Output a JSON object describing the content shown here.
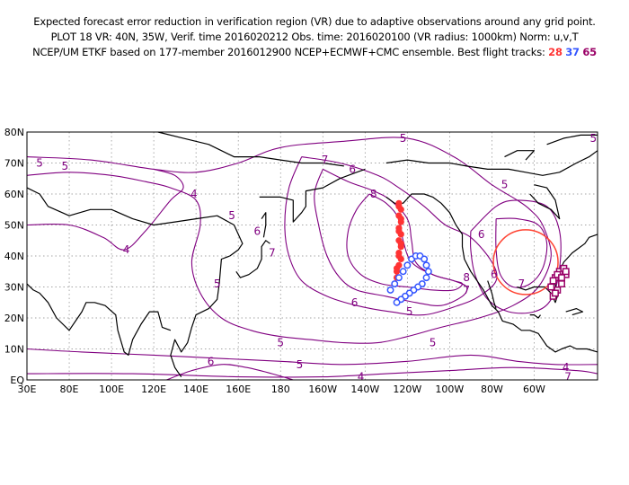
{
  "header": {
    "line1": "Expected forecast error reduction in verification region (VR) due to adaptive observations around any grid point.",
    "line2": "PLOT 18 VR: 40N, 35W, Verif. time 2016020212 Obs. time: 2016020100 (VR radius: 1000km) Norm: u,v,T",
    "line3": "NCEP/UM ETKF based on 177-member 2016012900 NCEP+ECMWF+CMC ensemble. Best flight tracks:",
    "tracks": [
      "28",
      "37",
      "65"
    ]
  },
  "colors": {
    "contour": "#800080",
    "track_28": "#ff3333",
    "track_37": "#3355ff",
    "track_65": "#990066",
    "vr_circle": "#ff4433",
    "coast": "#000000",
    "grid": "#888888"
  },
  "map": {
    "lon_range": [
      30,
      300
    ],
    "lat_range": [
      0,
      80
    ],
    "lon_ticks": [
      "80E",
      "100E",
      "120E",
      "140E",
      "160E",
      "180",
      "160W",
      "140W",
      "120W",
      "100W",
      "80W",
      "60W"
    ],
    "lat_ticks": [
      "EQ",
      "10N",
      "20N",
      "30N",
      "40N",
      "50N",
      "60N",
      "70N",
      "80N"
    ],
    "contour_labels": [
      {
        "text": "5",
        "lon": 36,
        "lat": 70
      },
      {
        "text": "5",
        "lon": 48,
        "lat": 69
      },
      {
        "text": "4",
        "lon": 109,
        "lat": 60
      },
      {
        "text": "5",
        "lon": 127,
        "lat": 53
      },
      {
        "text": "4",
        "lon": 77,
        "lat": 42
      },
      {
        "text": "6",
        "lon": 139,
        "lat": 48
      },
      {
        "text": "6",
        "lon": 184,
        "lat": 68
      },
      {
        "text": "7",
        "lon": 171,
        "lat": 71
      },
      {
        "text": "7",
        "lon": 146,
        "lat": 41
      },
      {
        "text": "8",
        "lon": 194,
        "lat": 60
      },
      {
        "text": "5",
        "lon": 208,
        "lat": 78
      },
      {
        "text": "5",
        "lon": 256,
        "lat": 63
      },
      {
        "text": "6",
        "lon": 245,
        "lat": 47
      },
      {
        "text": "7",
        "lon": 264,
        "lat": 31
      },
      {
        "text": "6",
        "lon": 251,
        "lat": 34
      },
      {
        "text": "8",
        "lon": 238,
        "lat": 33
      },
      {
        "text": "7",
        "lon": 238,
        "lat": 29
      },
      {
        "text": "5",
        "lon": 120,
        "lat": 31
      },
      {
        "text": "6",
        "lon": 185,
        "lat": 25
      },
      {
        "text": "5",
        "lon": 211,
        "lat": 22
      },
      {
        "text": "5",
        "lon": 222,
        "lat": 12
      },
      {
        "text": "5",
        "lon": 150,
        "lat": 12
      },
      {
        "text": "6",
        "lon": 117,
        "lat": 6
      },
      {
        "text": "5",
        "lon": 159,
        "lat": 5
      },
      {
        "text": "5",
        "lon": 298,
        "lat": 78
      },
      {
        "text": "4",
        "lon": 285,
        "lat": 4
      },
      {
        "text": "4",
        "lon": 188,
        "lat": 1
      },
      {
        "text": "7",
        "lon": 286,
        "lat": 1
      }
    ]
  },
  "chart_data": {
    "type": "map",
    "vr_center": {
      "lon": 325,
      "lat": 40
    },
    "vr_circle_center_shown": {
      "lon": 266,
      "lat": 38
    },
    "track_28": [
      [
        206,
        57
      ],
      [
        207,
        55
      ],
      [
        206,
        53
      ],
      [
        207,
        51
      ],
      [
        206,
        49
      ],
      [
        207,
        47
      ],
      [
        206,
        45
      ],
      [
        207,
        43
      ],
      [
        206,
        41
      ],
      [
        207,
        39
      ],
      [
        206,
        37
      ],
      [
        205,
        35
      ],
      [
        205,
        33
      ],
      [
        206,
        56
      ],
      [
        207,
        52
      ],
      [
        206,
        48
      ],
      [
        207,
        44
      ],
      [
        206,
        40
      ],
      [
        205,
        36
      ]
    ],
    "track_37": [
      [
        202,
        29
      ],
      [
        204,
        31
      ],
      [
        206,
        33
      ],
      [
        208,
        35
      ],
      [
        210,
        37
      ],
      [
        212,
        39
      ],
      [
        214,
        40
      ],
      [
        216,
        40
      ],
      [
        218,
        39
      ],
      [
        219,
        37
      ],
      [
        220,
        35
      ],
      [
        219,
        33
      ],
      [
        217,
        31
      ],
      [
        215,
        30
      ],
      [
        213,
        29
      ],
      [
        211,
        28
      ],
      [
        209,
        27
      ],
      [
        207,
        26
      ],
      [
        205,
        25
      ]
    ],
    "track_65": [
      [
        278,
        30
      ],
      [
        280,
        33
      ],
      [
        282,
        35
      ],
      [
        284,
        36
      ],
      [
        285,
        34
      ],
      [
        283,
        31
      ],
      [
        281,
        29
      ],
      [
        279,
        27
      ],
      [
        279,
        32
      ],
      [
        281,
        34
      ],
      [
        283,
        33
      ],
      [
        285,
        35
      ],
      [
        280,
        28
      ]
    ],
    "contours": [
      {
        "level": 7,
        "points": [
          [
            170,
            68
          ],
          [
            182,
            64
          ],
          [
            194,
            61
          ],
          [
            202,
            58
          ],
          [
            210,
            52
          ],
          [
            212,
            45
          ],
          [
            214,
            38
          ],
          [
            222,
            34
          ],
          [
            232,
            32
          ],
          [
            238,
            30
          ],
          [
            236,
            27
          ],
          [
            226,
            24
          ],
          [
            214,
            25
          ],
          [
            200,
            27
          ],
          [
            186,
            29
          ],
          [
            178,
            33
          ],
          [
            172,
            40
          ],
          [
            168,
            50
          ],
          [
            166,
            60
          ],
          [
            170,
            68
          ]
        ]
      },
      {
        "level": 6,
        "points": [
          [
            160,
            72
          ],
          [
            178,
            70
          ],
          [
            196,
            66
          ],
          [
            206,
            62
          ],
          [
            218,
            56
          ],
          [
            228,
            50
          ],
          [
            240,
            46
          ],
          [
            250,
            38
          ],
          [
            252,
            32
          ],
          [
            244,
            27
          ],
          [
            234,
            24
          ],
          [
            218,
            21
          ],
          [
            202,
            22
          ],
          [
            186,
            24
          ],
          [
            172,
            27
          ],
          [
            160,
            32
          ],
          [
            154,
            40
          ],
          [
            152,
            50
          ],
          [
            154,
            62
          ],
          [
            160,
            72
          ]
        ]
      },
      {
        "level": 8,
        "points": [
          [
            192,
            60
          ],
          [
            200,
            57
          ],
          [
            206,
            52
          ],
          [
            208,
            45
          ],
          [
            212,
            38
          ],
          [
            222,
            34
          ],
          [
            232,
            32
          ],
          [
            236,
            31
          ],
          [
            232,
            29
          ],
          [
            222,
            29
          ],
          [
            210,
            30
          ],
          [
            198,
            31
          ],
          [
            188,
            34
          ],
          [
            182,
            40
          ],
          [
            182,
            48
          ],
          [
            186,
            55
          ],
          [
            192,
            60
          ]
        ]
      },
      {
        "level": 5,
        "points": [
          [
            30,
            72
          ],
          [
            60,
            71
          ],
          [
            90,
            68
          ],
          [
            110,
            67
          ],
          [
            130,
            70
          ],
          [
            150,
            75
          ],
          [
            180,
            77
          ],
          [
            210,
            78
          ],
          [
            232,
            72
          ],
          [
            250,
            63
          ],
          [
            262,
            58
          ],
          [
            268,
            55
          ],
          [
            274,
            50
          ],
          [
            278,
            40
          ],
          [
            272,
            30
          ],
          [
            260,
            24
          ],
          [
            244,
            20
          ],
          [
            226,
            17
          ],
          [
            210,
            14
          ],
          [
            196,
            12
          ],
          [
            180,
            12
          ],
          [
            164,
            13
          ],
          [
            150,
            14
          ],
          [
            136,
            16
          ],
          [
            122,
            20
          ],
          [
            112,
            28
          ],
          [
            108,
            38
          ],
          [
            112,
            50
          ],
          [
            110,
            58
          ],
          [
            98,
            62
          ],
          [
            86,
            64
          ],
          [
            70,
            66
          ],
          [
            50,
            67
          ],
          [
            30,
            66
          ]
        ]
      },
      {
        "level": 4,
        "points": [
          [
            30,
            50
          ],
          [
            50,
            50
          ],
          [
            66,
            46
          ],
          [
            76,
            42
          ],
          [
            86,
            48
          ],
          [
            98,
            58
          ],
          [
            104,
            62
          ],
          [
            100,
            66
          ],
          [
            90,
            68
          ]
        ]
      },
      {
        "level": 5,
        "points": [
          [
            30,
            10
          ],
          [
            56,
            9
          ],
          [
            90,
            8
          ],
          [
            120,
            7
          ],
          [
            150,
            6
          ],
          [
            180,
            5
          ],
          [
            210,
            6
          ],
          [
            240,
            8
          ],
          [
            262,
            6
          ],
          [
            280,
            5
          ],
          [
            300,
            5
          ]
        ]
      },
      {
        "level": 6,
        "points": [
          [
            96,
            0
          ],
          [
            108,
            3
          ],
          [
            122,
            5
          ],
          [
            134,
            4
          ],
          [
            146,
            2
          ],
          [
            156,
            0
          ]
        ]
      },
      {
        "level": 4,
        "points": [
          [
            30,
            2
          ],
          [
            80,
            2
          ],
          [
            130,
            1
          ],
          [
            170,
            1
          ],
          [
            200,
            2
          ],
          [
            230,
            3
          ],
          [
            260,
            4
          ],
          [
            290,
            3
          ],
          [
            300,
            2
          ]
        ]
      },
      {
        "level": 7,
        "points": [
          [
            252,
            52
          ],
          [
            262,
            52
          ],
          [
            272,
            50
          ],
          [
            276,
            44
          ],
          [
            274,
            36
          ],
          [
            268,
            31
          ],
          [
            260,
            30
          ],
          [
            254,
            34
          ],
          [
            252,
            42
          ],
          [
            252,
            52
          ]
        ]
      },
      {
        "level": 6,
        "points": [
          [
            240,
            48
          ],
          [
            252,
            56
          ],
          [
            262,
            58
          ],
          [
            276,
            56
          ],
          [
            282,
            48
          ],
          [
            282,
            36
          ],
          [
            278,
            26
          ],
          [
            270,
            22
          ],
          [
            258,
            22
          ],
          [
            248,
            26
          ],
          [
            242,
            34
          ],
          [
            240,
            42
          ],
          [
            240,
            48
          ]
        ]
      }
    ]
  }
}
